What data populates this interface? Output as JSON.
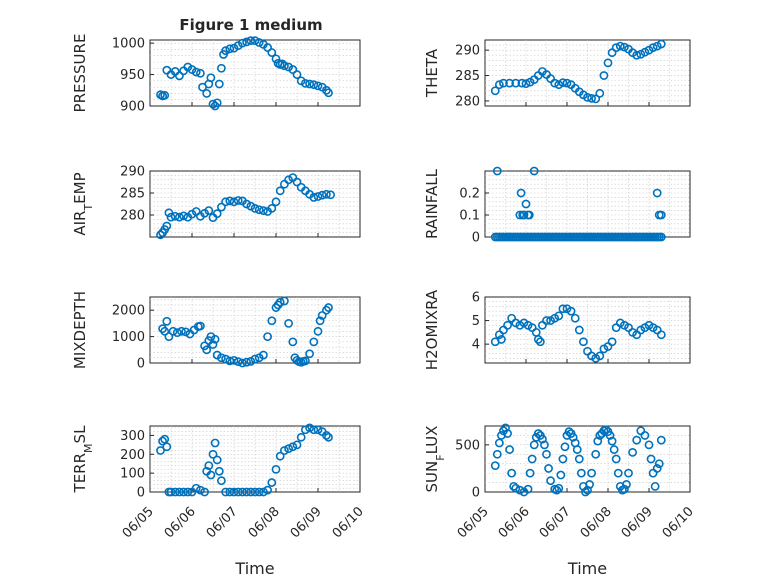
{
  "figure": {
    "title": "Figure 1 medium",
    "marker_color": "#0072bd",
    "x_tick_labels": [
      "06/05",
      "06/06",
      "06/07",
      "06/08",
      "06/09",
      "06/10"
    ],
    "xlabel": "Time"
  },
  "chart_data": [
    {
      "type": "scatter",
      "title": "Figure 1 medium",
      "ylabel": "PRESSURE",
      "xlim": [
        0,
        5
      ],
      "ylim": [
        900,
        1005
      ],
      "yticks": [
        900,
        950,
        1000
      ],
      "grid": true,
      "x": [
        0.25,
        0.3,
        0.35,
        0.4,
        0.5,
        0.6,
        0.7,
        0.8,
        0.9,
        1.0,
        1.1,
        1.2,
        1.25,
        1.35,
        1.4,
        1.45,
        1.5,
        1.55,
        1.6,
        1.65,
        1.7,
        1.75,
        1.8,
        1.9,
        2.0,
        2.1,
        2.2,
        2.3,
        2.4,
        2.5,
        2.6,
        2.7,
        2.8,
        2.9,
        3.0,
        3.05,
        3.1,
        3.15,
        3.2,
        3.3,
        3.4,
        3.5,
        3.6,
        3.7,
        3.8,
        3.9,
        4.0,
        4.1,
        4.2,
        4.25
      ],
      "y": [
        918,
        916,
        917,
        957,
        950,
        955,
        948,
        956,
        962,
        958,
        954,
        952,
        930,
        920,
        935,
        945,
        903,
        900,
        905,
        935,
        960,
        982,
        988,
        991,
        992,
        996,
        1000,
        1002,
        1004,
        1004,
        1001,
        998,
        993,
        985,
        975,
        968,
        966,
        967,
        964,
        962,
        958,
        950,
        940,
        936,
        935,
        934,
        932,
        930,
        925,
        921
      ]
    },
    {
      "type": "scatter",
      "ylabel": "THETA",
      "xlim": [
        0,
        5
      ],
      "ylim": [
        279,
        292
      ],
      "yticks": [
        280,
        285,
        290
      ],
      "grid": true,
      "x": [
        0.25,
        0.35,
        0.45,
        0.6,
        0.75,
        0.9,
        1.0,
        1.1,
        1.2,
        1.3,
        1.4,
        1.5,
        1.6,
        1.7,
        1.8,
        1.9,
        2.0,
        2.1,
        2.2,
        2.3,
        2.4,
        2.5,
        2.6,
        2.7,
        2.8,
        2.9,
        3.0,
        3.1,
        3.2,
        3.3,
        3.4,
        3.5,
        3.6,
        3.7,
        3.8,
        3.9,
        4.0,
        4.1,
        4.2,
        4.3
      ],
      "y": [
        282,
        283.2,
        283.5,
        283.5,
        283.5,
        283.5,
        283.4,
        283.7,
        284.2,
        285,
        285.8,
        285.2,
        284.4,
        283.5,
        283.2,
        283.6,
        283.5,
        283.2,
        282.5,
        281.8,
        281.2,
        280.7,
        280.5,
        280.4,
        281.5,
        285,
        287.5,
        289.5,
        290.5,
        290.8,
        290.6,
        290.2,
        289.5,
        289,
        289.2,
        289.6,
        290,
        290.5,
        290.8,
        291.2
      ]
    },
    {
      "type": "scatter",
      "ylabel": "AIR_TEMP",
      "xlim": [
        0,
        5
      ],
      "ylim": [
        275,
        290
      ],
      "yticks": [
        280,
        285,
        290
      ],
      "grid": true,
      "x": [
        0.25,
        0.3,
        0.35,
        0.4,
        0.45,
        0.5,
        0.6,
        0.7,
        0.8,
        0.9,
        1.0,
        1.1,
        1.2,
        1.3,
        1.4,
        1.5,
        1.6,
        1.7,
        1.8,
        1.9,
        2.0,
        2.1,
        2.2,
        2.3,
        2.4,
        2.5,
        2.6,
        2.7,
        2.8,
        2.9,
        3.0,
        3.1,
        3.2,
        3.3,
        3.4,
        3.5,
        3.6,
        3.7,
        3.8,
        3.9,
        4.0,
        4.1,
        4.2,
        4.3
      ],
      "y": [
        275.5,
        276,
        276.7,
        277.5,
        280.5,
        279.5,
        279.7,
        279.5,
        279.8,
        279.5,
        280.2,
        280.8,
        279.7,
        280.4,
        281,
        279.4,
        280.3,
        281.8,
        283,
        283.2,
        283,
        283.3,
        283.2,
        282.5,
        282,
        281.5,
        281.2,
        281,
        280.8,
        281.5,
        283,
        285.5,
        287,
        288,
        288.5,
        287.5,
        286.3,
        285.5,
        284.7,
        284,
        284.2,
        284.5,
        284.7,
        284.6
      ]
    },
    {
      "type": "scatter",
      "ylabel": "RAINFALL",
      "xlim": [
        0,
        5
      ],
      "ylim": [
        0,
        0.3
      ],
      "yticks": [
        0,
        0.1,
        0.2
      ],
      "grid": true,
      "x": [
        0.25,
        0.3,
        0.35,
        0.4,
        0.45,
        0.5,
        0.55,
        0.6,
        0.65,
        0.7,
        0.75,
        0.8,
        0.85,
        0.9,
        0.95,
        1.0,
        1.05,
        1.1,
        1.15,
        1.2,
        1.25,
        1.3,
        1.35,
        1.4,
        1.45,
        1.5,
        1.55,
        1.6,
        1.65,
        1.7,
        1.75,
        1.8,
        1.85,
        1.9,
        1.95,
        2.0,
        2.05,
        2.1,
        2.15,
        2.2,
        2.25,
        2.3,
        2.35,
        2.4,
        2.45,
        2.5,
        2.55,
        2.6,
        2.65,
        2.7,
        2.75,
        2.8,
        2.85,
        2.9,
        2.95,
        3.0,
        3.05,
        3.1,
        3.15,
        3.2,
        3.25,
        3.3,
        3.35,
        3.4,
        3.45,
        3.5,
        3.55,
        3.6,
        3.65,
        3.7,
        3.75,
        3.8,
        3.85,
        3.9,
        3.95,
        4.0,
        4.05,
        4.1,
        4.15,
        4.2,
        4.25,
        4.3,
        0.3,
        0.85,
        0.88,
        0.92,
        0.95,
        1.0,
        1.05,
        1.08,
        1.2,
        4.2,
        4.25,
        4.3
      ],
      "y": [
        0,
        0,
        0,
        0,
        0,
        0,
        0,
        0,
        0,
        0,
        0,
        0,
        0,
        0,
        0,
        0,
        0,
        0,
        0,
        0,
        0,
        0,
        0,
        0,
        0,
        0,
        0,
        0,
        0,
        0,
        0,
        0,
        0,
        0,
        0,
        0,
        0,
        0,
        0,
        0,
        0,
        0,
        0,
        0,
        0,
        0,
        0,
        0,
        0,
        0,
        0,
        0,
        0,
        0,
        0,
        0,
        0,
        0,
        0,
        0,
        0,
        0,
        0,
        0,
        0,
        0,
        0,
        0,
        0,
        0,
        0,
        0,
        0,
        0,
        0,
        0,
        0,
        0,
        0,
        0,
        0,
        0,
        0.3,
        0.1,
        0.2,
        0.1,
        0.1,
        0.15,
        0.1,
        0.1,
        0.3,
        0.2,
        0.1,
        0.1
      ]
    },
    {
      "type": "scatter",
      "ylabel": "MIXDEPTH",
      "xlim": [
        0,
        5
      ],
      "ylim": [
        0,
        2500
      ],
      "yticks": [
        0,
        1000,
        2000
      ],
      "grid": true,
      "x": [
        0.3,
        0.35,
        0.4,
        0.45,
        0.55,
        0.65,
        0.75,
        0.85,
        0.95,
        1.05,
        1.15,
        1.2,
        1.3,
        1.35,
        1.4,
        1.45,
        1.5,
        1.55,
        1.6,
        1.7,
        1.8,
        1.9,
        2.0,
        2.1,
        2.2,
        2.3,
        2.4,
        2.5,
        2.6,
        2.7,
        2.8,
        2.9,
        3.0,
        3.05,
        3.1,
        3.2,
        3.3,
        3.4,
        3.45,
        3.5,
        3.55,
        3.6,
        3.65,
        3.7,
        3.8,
        3.9,
        4.0,
        4.05,
        4.1,
        4.2,
        4.25
      ],
      "y": [
        1300,
        1200,
        1580,
        1000,
        1200,
        1150,
        1200,
        1180,
        1100,
        1250,
        1380,
        1400,
        650,
        500,
        850,
        1000,
        700,
        900,
        300,
        200,
        150,
        80,
        100,
        50,
        0,
        30,
        60,
        150,
        200,
        300,
        1000,
        1600,
        2100,
        2200,
        2300,
        2350,
        1500,
        800,
        200,
        100,
        50,
        30,
        60,
        80,
        350,
        800,
        1200,
        1600,
        1800,
        2000,
        2100
      ]
    },
    {
      "type": "scatter",
      "ylabel": "H2OMIXRA",
      "xlim": [
        0,
        5
      ],
      "ylim": [
        3.2,
        6
      ],
      "yticks": [
        4,
        5,
        6
      ],
      "grid": true,
      "x": [
        0.25,
        0.35,
        0.4,
        0.45,
        0.55,
        0.65,
        0.75,
        0.85,
        0.95,
        1.05,
        1.15,
        1.25,
        1.3,
        1.35,
        1.4,
        1.5,
        1.6,
        1.7,
        1.8,
        1.9,
        2.0,
        2.1,
        2.2,
        2.3,
        2.4,
        2.5,
        2.6,
        2.7,
        2.8,
        2.9,
        3.0,
        3.1,
        3.2,
        3.3,
        3.4,
        3.5,
        3.6,
        3.7,
        3.8,
        3.9,
        4.0,
        4.1,
        4.2,
        4.3
      ],
      "y": [
        4.1,
        4.4,
        4.2,
        4.6,
        4.8,
        5.1,
        4.9,
        4.8,
        4.9,
        4.8,
        4.7,
        4.5,
        4.2,
        4.1,
        4.8,
        5.0,
        5.0,
        5.1,
        5.2,
        5.5,
        5.5,
        5.4,
        5.1,
        4.6,
        4.1,
        3.7,
        3.5,
        3.4,
        3.5,
        3.8,
        3.9,
        4.1,
        4.7,
        4.9,
        4.8,
        4.7,
        4.5,
        4.4,
        4.6,
        4.7,
        4.8,
        4.7,
        4.6,
        4.4
      ]
    },
    {
      "type": "scatter",
      "ylabel": "TERR_MSL",
      "xlim": [
        0,
        5
      ],
      "ylim": [
        0,
        350
      ],
      "yticks": [
        0,
        100,
        200,
        300
      ],
      "grid": true,
      "x": [
        0.25,
        0.3,
        0.35,
        0.4,
        0.45,
        0.5,
        0.6,
        0.7,
        0.8,
        0.9,
        1.0,
        1.1,
        1.2,
        1.3,
        1.35,
        1.4,
        1.45,
        1.5,
        1.55,
        1.6,
        1.65,
        1.7,
        1.8,
        1.9,
        2.0,
        2.1,
        2.2,
        2.3,
        2.4,
        2.5,
        2.6,
        2.7,
        2.8,
        2.9,
        3.0,
        3.1,
        3.2,
        3.3,
        3.4,
        3.5,
        3.6,
        3.7,
        3.8,
        3.9,
        4.0,
        4.1,
        4.2,
        4.25
      ],
      "y": [
        220,
        270,
        280,
        240,
        0,
        0,
        0,
        0,
        0,
        0,
        0,
        20,
        10,
        0,
        110,
        140,
        90,
        200,
        260,
        170,
        110,
        60,
        0,
        0,
        0,
        0,
        0,
        0,
        0,
        0,
        0,
        0,
        10,
        50,
        120,
        190,
        220,
        230,
        240,
        250,
        290,
        330,
        340,
        330,
        330,
        320,
        300,
        290
      ]
    },
    {
      "type": "scatter",
      "ylabel": "SUN_FLUX",
      "xlim": [
        0,
        5
      ],
      "ylim": [
        0,
        700
      ],
      "yticks": [
        0,
        500
      ],
      "grid": true,
      "x": [
        0.25,
        0.3,
        0.35,
        0.4,
        0.45,
        0.5,
        0.55,
        0.6,
        0.65,
        0.7,
        0.75,
        0.85,
        0.95,
        1.05,
        1.1,
        1.15,
        1.2,
        1.25,
        1.3,
        1.35,
        1.4,
        1.45,
        1.5,
        1.55,
        1.6,
        1.7,
        1.75,
        1.8,
        1.85,
        1.9,
        1.95,
        2.0,
        2.05,
        2.1,
        2.15,
        2.2,
        2.25,
        2.3,
        2.35,
        2.4,
        2.45,
        2.5,
        2.55,
        2.6,
        2.7,
        2.75,
        2.8,
        2.85,
        2.9,
        2.95,
        3.0,
        3.05,
        3.1,
        3.15,
        3.2,
        3.25,
        3.3,
        3.35,
        3.4,
        3.45,
        3.5,
        3.6,
        3.7,
        3.8,
        3.9,
        4.0,
        4.05,
        4.1,
        4.15,
        4.2,
        4.25,
        4.3
      ],
      "y": [
        280,
        400,
        520,
        600,
        650,
        680,
        620,
        450,
        200,
        60,
        40,
        20,
        0,
        30,
        200,
        350,
        500,
        580,
        620,
        600,
        560,
        500,
        400,
        250,
        120,
        30,
        20,
        40,
        180,
        350,
        480,
        600,
        640,
        620,
        580,
        520,
        450,
        350,
        200,
        60,
        0,
        20,
        80,
        200,
        400,
        540,
        600,
        620,
        650,
        660,
        640,
        600,
        540,
        450,
        350,
        200,
        60,
        20,
        30,
        80,
        200,
        420,
        550,
        650,
        600,
        500,
        350,
        200,
        60,
        250,
        300,
        550
      ]
    }
  ]
}
